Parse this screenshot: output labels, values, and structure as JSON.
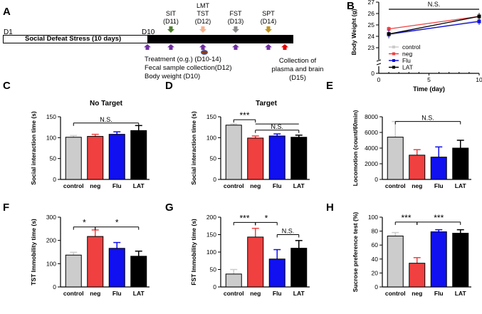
{
  "panel_labels": [
    "A",
    "B",
    "C",
    "D",
    "E",
    "F",
    "G",
    "H"
  ],
  "timeline": {
    "start_label": "D1",
    "bar_text": "Social Defeat Stress (10 days)",
    "d10_label": "D10",
    "tests": [
      {
        "lines": [
          "SIT",
          "(D11)"
        ],
        "color": "#4f7f2f"
      },
      {
        "lines": [
          "LMT",
          "TST",
          "(D12)"
        ],
        "color": "#f7b38f"
      },
      {
        "lines": [
          "FST",
          "(D13)"
        ],
        "color": "#8c8c8c"
      },
      {
        "lines": [
          "SPT",
          "(D14)"
        ],
        "color": "#c2941c"
      }
    ],
    "notes": [
      "Treatment (o.g.) (D10-14)",
      "Fecal sample collection(D12)",
      "Body weight (D10)"
    ],
    "collection": [
      "Collection of",
      "plasma and brain",
      "(D15)"
    ],
    "treatment_color": "#7030a0",
    "collection_color": "#e00000",
    "fecal_color": "#8b3a1a"
  },
  "chart_data": [
    {
      "id": "B",
      "type": "line",
      "xlabel": "Time (day)",
      "ylabel": "Body Weight (g)",
      "xlim": [
        0,
        10
      ],
      "xticks": [
        "0",
        "5",
        "10"
      ],
      "yticks": [
        "0",
        "23",
        "24",
        "25",
        "26",
        "27"
      ],
      "annotation": "N.S.",
      "series": [
        {
          "name": "control",
          "color": "#cccccc",
          "x": [
            1,
            10
          ],
          "y": [
            24.1,
            25.4
          ],
          "err": [
            0.35,
            0.3
          ]
        },
        {
          "name": "neg",
          "color": "#f04040",
          "x": [
            1,
            10
          ],
          "y": [
            24.65,
            25.75
          ],
          "err": [
            0.2,
            0.3
          ]
        },
        {
          "name": "Flu",
          "color": "#1010e0",
          "x": [
            1,
            10
          ],
          "y": [
            24.2,
            25.3
          ],
          "err": [
            0.35,
            0.3
          ]
        },
        {
          "name": "LAT",
          "color": "#000000",
          "x": [
            1,
            10
          ],
          "y": [
            24.2,
            25.75
          ],
          "err": [
            0.2,
            0.3
          ]
        }
      ]
    },
    {
      "id": "C",
      "type": "bar",
      "title": "No Target",
      "ylabel": "Social interaction time (s)",
      "ylim": [
        0,
        150
      ],
      "yticks": [
        "0",
        "50",
        "100",
        "150"
      ],
      "categories": [
        "control",
        "neg",
        "Flu",
        "LAT"
      ],
      "values": [
        101,
        103,
        108,
        117
      ],
      "errors": [
        4,
        5,
        6,
        12
      ],
      "annotations": [
        {
          "text": "N.S.",
          "from": 0,
          "to": 3,
          "level": 135
        }
      ]
    },
    {
      "id": "D",
      "type": "bar",
      "title": "Target",
      "ylabel": "Social interaction time (s)",
      "ylim": [
        0,
        150
      ],
      "yticks": [
        "0",
        "50",
        "100",
        "150"
      ],
      "categories": [
        "control",
        "neg",
        "Flu",
        "LAT"
      ],
      "values": [
        130,
        99,
        104,
        101
      ],
      "errors": [
        3,
        5,
        5,
        5
      ],
      "annotations": [
        {
          "text": "***",
          "from": 0,
          "to": 1,
          "level": 143,
          "ext": 3
        },
        {
          "text": "N.S.",
          "from": 1,
          "to": 3,
          "level": 118
        }
      ]
    },
    {
      "id": "E",
      "type": "bar",
      "title": "",
      "ylabel": "Locomotion (count/60min)",
      "ylim": [
        0,
        8000
      ],
      "yticks": [
        "0",
        "2000",
        "4000",
        "6000",
        "8000"
      ],
      "categories": [
        "control",
        "neg",
        "Flu",
        "LAT"
      ],
      "values": [
        5400,
        3100,
        2850,
        4000
      ],
      "errors": [
        2000,
        700,
        1300,
        1000
      ],
      "annotations": [
        {
          "text": "N.S.",
          "from": 0,
          "to": 3,
          "level": 7400
        }
      ]
    },
    {
      "id": "F",
      "type": "bar",
      "title": "",
      "ylabel": "TST Immobility time (s)",
      "ylim": [
        0,
        300
      ],
      "yticks": [
        "0",
        "100",
        "200",
        "300"
      ],
      "categories": [
        "control",
        "neg",
        "Flu",
        "LAT"
      ],
      "values": [
        137,
        217,
        166,
        132
      ],
      "errors": [
        12,
        28,
        25,
        22
      ],
      "annotations": [
        {
          "text": "*",
          "from": 0,
          "to": 1,
          "level": 258
        },
        {
          "text": "*",
          "from": 1,
          "to": 3,
          "level": 258
        }
      ]
    },
    {
      "id": "G",
      "type": "bar",
      "title": "",
      "ylabel": "FST Immobility time (s)",
      "ylim": [
        0,
        200
      ],
      "yticks": [
        "0",
        "50",
        "100",
        "150",
        "200"
      ],
      "categories": [
        "control",
        "neg",
        "Flu",
        "LAT"
      ],
      "values": [
        37,
        143,
        80,
        111
      ],
      "errors": [
        13,
        25,
        27,
        22
      ],
      "annotations": [
        {
          "text": "***",
          "from": 0,
          "to": 1,
          "level": 185
        },
        {
          "text": "*",
          "from": 1,
          "to": 2,
          "level": 185
        },
        {
          "text": "N.S.",
          "from": 2,
          "to": 3,
          "level": 150
        }
      ]
    },
    {
      "id": "H",
      "type": "bar",
      "title": "",
      "ylabel": "Sucrose preference test (%)",
      "ylim": [
        0,
        100
      ],
      "yticks": [
        "0",
        "20",
        "40",
        "60",
        "80",
        "100"
      ],
      "categories": [
        "control",
        "neg",
        "Flu",
        "LAT"
      ],
      "values": [
        73,
        34,
        79,
        77
      ],
      "errors": [
        5,
        8,
        3,
        5
      ],
      "annotations": [
        {
          "text": "***",
          "from": 0,
          "to": 1,
          "level": 93
        },
        {
          "text": "***",
          "from": 1,
          "to": 3,
          "level": 93
        }
      ]
    }
  ],
  "bar_colors": [
    "#cccccc",
    "#f04040",
    "#1010f0",
    "#000000"
  ]
}
